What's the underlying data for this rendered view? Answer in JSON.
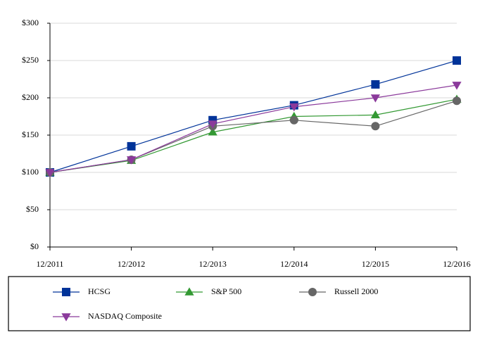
{
  "chart_data": {
    "type": "line",
    "categories": [
      "12/2011",
      "12/2012",
      "12/2013",
      "12/2014",
      "12/2015",
      "12/2016"
    ],
    "series": [
      {
        "name": "HCSG",
        "color": "#003399",
        "marker": "square",
        "values": [
          100,
          135,
          170,
          190,
          218,
          250
        ]
      },
      {
        "name": "S&P 500",
        "color": "#339933",
        "marker": "triangle-up",
        "values": [
          100,
          116,
          154,
          175,
          177,
          198
        ]
      },
      {
        "name": "Russell 2000",
        "color": "#666666",
        "marker": "circle",
        "values": [
          100,
          117,
          162,
          170,
          162,
          196
        ]
      },
      {
        "name": "NASDAQ Composite",
        "color": "#8b3a9b",
        "marker": "triangle-down",
        "values": [
          100,
          117,
          165,
          188,
          200,
          217
        ]
      }
    ],
    "ylim": [
      0,
      300
    ],
    "yticks": [
      {
        "value": 0,
        "label": "$0"
      },
      {
        "value": 50,
        "label": "$50"
      },
      {
        "value": 100,
        "label": "$100"
      },
      {
        "value": 150,
        "label": "$150"
      },
      {
        "value": 200,
        "label": "$200"
      },
      {
        "value": 250,
        "label": "$250"
      },
      {
        "value": 300,
        "label": "$300"
      }
    ],
    "grid": true
  }
}
